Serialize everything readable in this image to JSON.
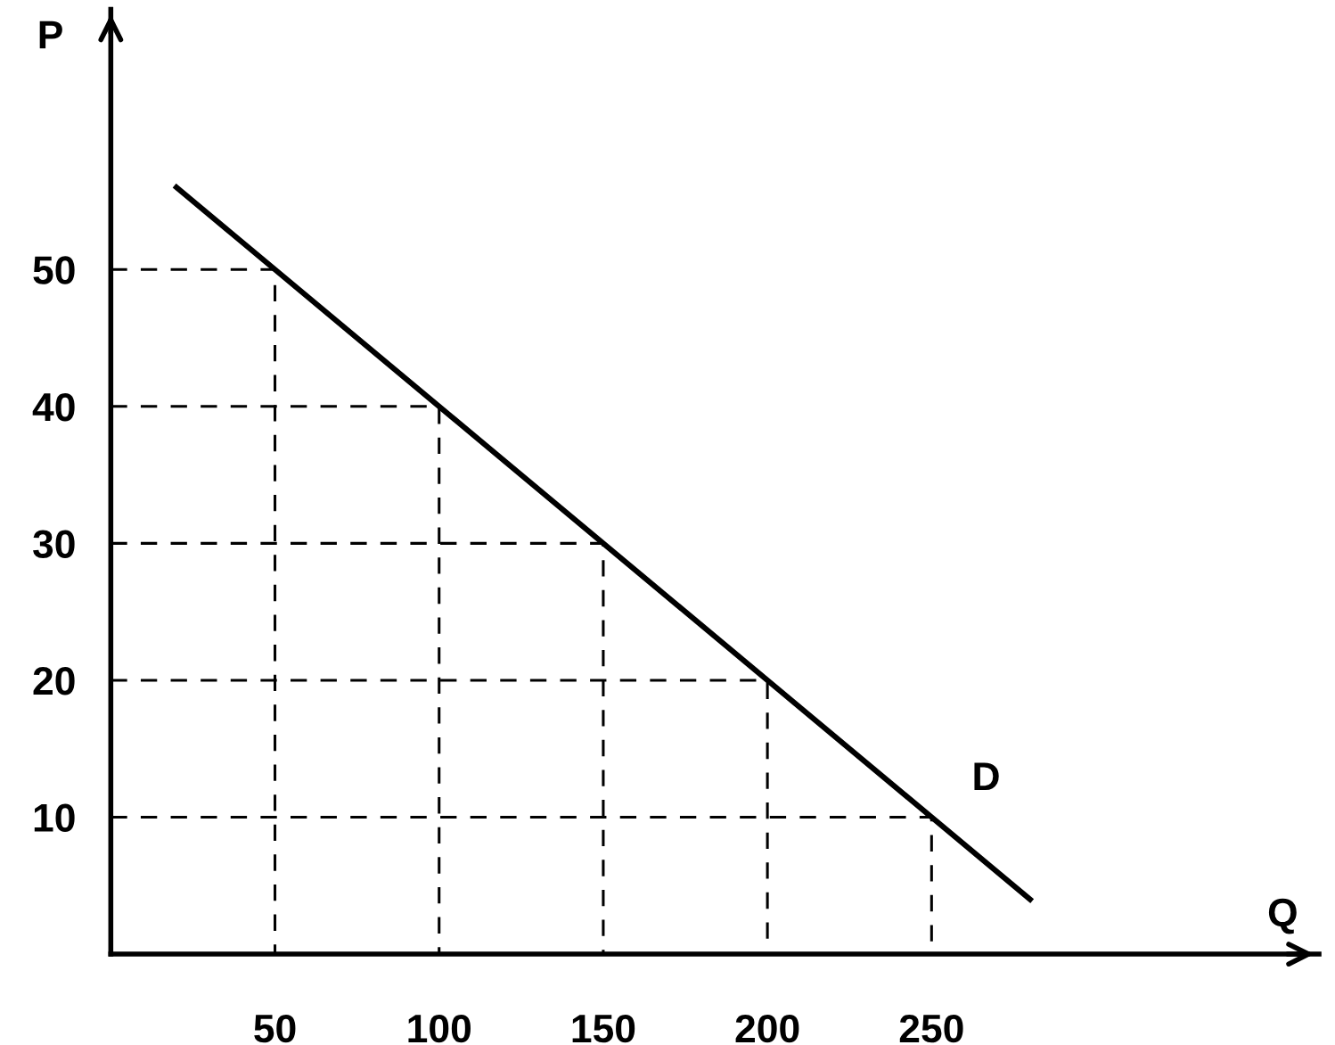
{
  "chart_data": {
    "type": "line",
    "xlabel": "Q",
    "ylabel": "P",
    "series": [
      {
        "color": "#000000",
        "line_style": "solid",
        "x": [
          20,
          280
        ],
        "values": [
          56,
          4
        ]
      },
      {
        "color": "#000000",
        "line_style": "dashed",
        "x": [
          0,
          50,
          50
        ],
        "values": [
          50,
          50,
          0
        ]
      },
      {
        "color": "#000000",
        "line_style": "dashed",
        "x": [
          0,
          100,
          100
        ],
        "values": [
          40,
          40,
          0
        ]
      },
      {
        "color": "#000000",
        "line_style": "dashed",
        "x": [
          0,
          150,
          150
        ],
        "values": [
          30,
          30,
          0
        ]
      },
      {
        "color": "#000000",
        "line_style": "dashed",
        "x": [
          0,
          200,
          200
        ],
        "values": [
          20,
          20,
          0
        ]
      },
      {
        "color": "#000000",
        "line_style": "dashed",
        "x": [
          0,
          250,
          250
        ],
        "values": [
          10,
          10,
          0
        ]
      }
    ],
    "annotations": [
      {
        "text": "D",
        "x": 260,
        "y": 8
      }
    ],
    "xlim": [
      0,
      368
    ],
    "ylim": [
      0,
      69
    ],
    "xticks": [
      50,
      100,
      150,
      200,
      250
    ],
    "yticks": [
      10,
      20,
      30,
      40,
      50
    ],
    "grid": false,
    "legend": false,
    "marker": "none"
  }
}
